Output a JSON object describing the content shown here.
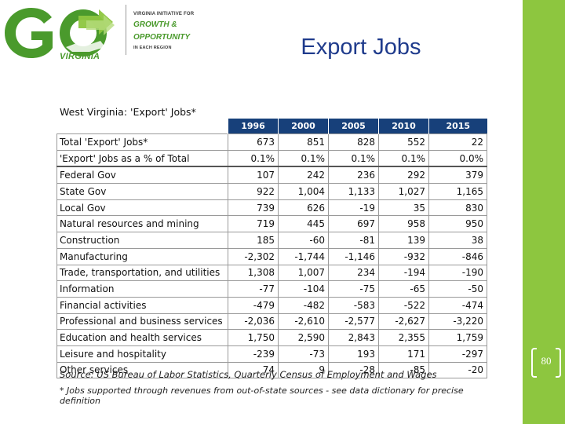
{
  "slide": {
    "title": "Export Jobs",
    "page_number": "80"
  },
  "logo": {
    "go_text": "GO",
    "virginia": "VIRGINIA",
    "initiative": "VIRGINIA INITIATIVE FOR",
    "growth": "GROWTH &",
    "opportunity": "OPPORTUNITY",
    "region": "IN EACH REGION",
    "colors": {
      "green": "#4a9a2c",
      "light_green": "#8dc63f"
    }
  },
  "table": {
    "heading": "West Virginia: 'Export' Jobs*",
    "header_color": "#17407a",
    "columns": [
      "1996",
      "2000",
      "2005",
      "2010",
      "2015"
    ],
    "rows": [
      {
        "label": "Total 'Export' Jobs*",
        "values": [
          "673",
          "851",
          "828",
          "552",
          "22"
        ]
      },
      {
        "label": " 'Export' Jobs as a % of Total",
        "values": [
          "0.1%",
          "0.1%",
          "0.1%",
          "0.1%",
          "0.0%"
        ]
      },
      {
        "label": "Federal Gov",
        "values": [
          "107",
          "242",
          "236",
          "292",
          "379"
        ]
      },
      {
        "label": "State Gov",
        "values": [
          "922",
          "1,004",
          "1,133",
          "1,027",
          "1,165"
        ]
      },
      {
        "label": "Local Gov",
        "values": [
          "739",
          "626",
          "-19",
          "35",
          "830"
        ]
      },
      {
        "label": "Natural resources and mining",
        "values": [
          "719",
          "445",
          "697",
          "958",
          "950"
        ]
      },
      {
        "label": "Construction",
        "values": [
          "185",
          "-60",
          "-81",
          "139",
          "38"
        ]
      },
      {
        "label": "Manufacturing",
        "values": [
          "-2,302",
          "-1,744",
          "-1,146",
          "-932",
          "-846"
        ]
      },
      {
        "label": "Trade, transportation, and utilities",
        "values": [
          "1,308",
          "1,007",
          "234",
          "-194",
          "-190"
        ]
      },
      {
        "label": "Information",
        "values": [
          "-77",
          "-104",
          "-75",
          "-65",
          "-50"
        ]
      },
      {
        "label": "Financial activities",
        "values": [
          "-479",
          "-482",
          "-583",
          "-522",
          "-474"
        ]
      },
      {
        "label": "Professional and business services",
        "values": [
          "-2,036",
          "-2,610",
          "-2,577",
          "-2,627",
          "-3,220"
        ]
      },
      {
        "label": "Education and health services",
        "values": [
          "1,750",
          "2,590",
          "2,843",
          "2,355",
          "1,759"
        ]
      },
      {
        "label": "Leisure and hospitality",
        "values": [
          "-239",
          "-73",
          "193",
          "171",
          "-297"
        ]
      },
      {
        "label": "Other services",
        "values": [
          "74",
          "9",
          "-28",
          "-85",
          "-20"
        ]
      }
    ],
    "source": "Source: US Bureau of Labor Statistics, Quarterly Census of Employment and Wages",
    "footnote": "* Jobs supported through revenues  from out-of-state sources - see data dictionary for precise definition"
  }
}
